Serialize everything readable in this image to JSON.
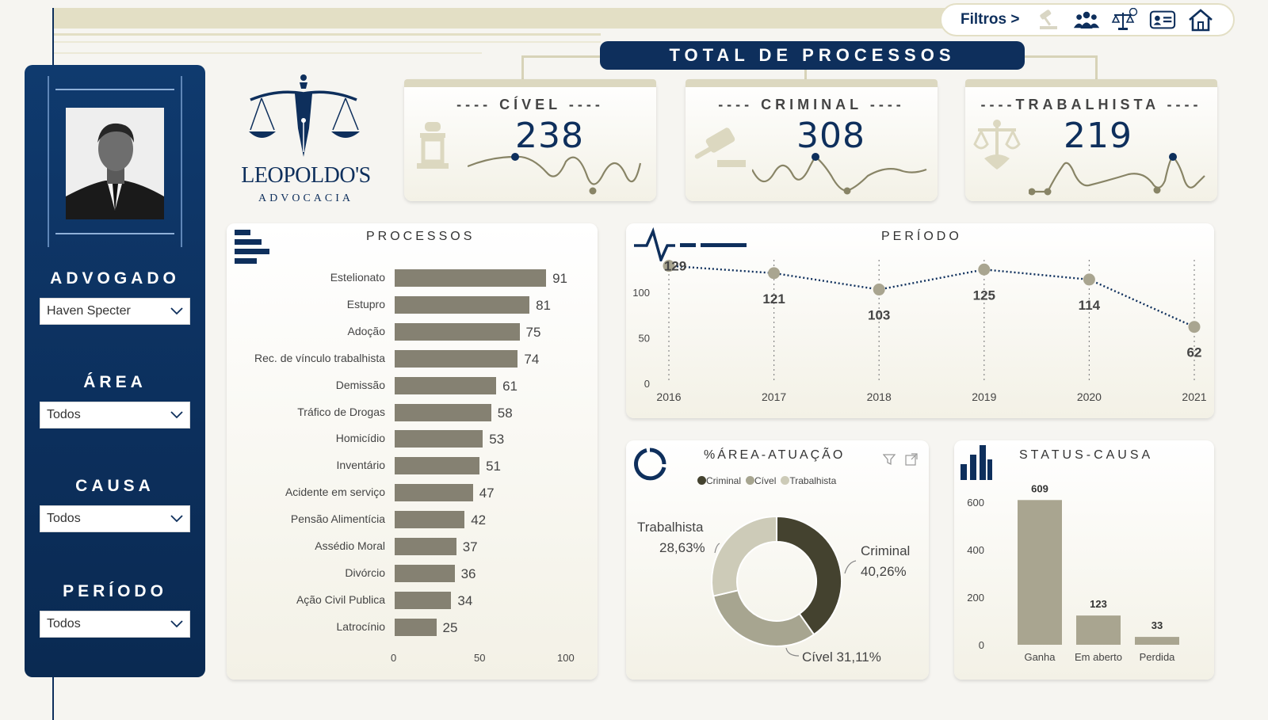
{
  "header": {
    "filters_label": "Filtros >",
    "total_title": "TOTAL DE PROCESSOS",
    "icons": [
      "gavel-icon",
      "people-icon",
      "scales-money-icon",
      "id-card-icon",
      "home-icon"
    ]
  },
  "sidebar": {
    "advogado_label": "ADVOGADO",
    "advogado_value": "Haven Specter",
    "area_label": "ÁREA",
    "area_value": "Todos",
    "causa_label": "CAUSA",
    "causa_value": "Todos",
    "periodo_label": "PERÍODO",
    "periodo_value": "Todos"
  },
  "logo": {
    "name": "LEOPOLDO'S",
    "sub": "ADVOCACIA"
  },
  "kpis": [
    {
      "title": "---- CÍVEL ----",
      "value": "238"
    },
    {
      "title": "---- CRIMINAL ----",
      "value": "308"
    },
    {
      "title": "----TRABALHISTA ----",
      "value": "219"
    }
  ],
  "colors": {
    "navy": "#0e2f5c",
    "bar": "#858172",
    "beige": "#e3dfc5",
    "criminal": "#44422f",
    "civel": "#a7a590",
    "trabalhista": "#cdcbb8"
  },
  "chart_data": [
    {
      "type": "bar",
      "orientation": "horizontal",
      "title": "PROCESSOS",
      "categories": [
        "Estelionato",
        "Estupro",
        "Adoção",
        "Rec. de vínculo trabalhista",
        "Demissão",
        "Tráfico de Drogas",
        "Homicídio",
        "Inventário",
        "Acidente em serviço",
        "Pensão Alimentícia",
        "Assédio Moral",
        "Divórcio",
        "Ação Civil Publica",
        "Latrocínio"
      ],
      "values": [
        91,
        81,
        75,
        74,
        61,
        58,
        53,
        51,
        47,
        42,
        37,
        36,
        34,
        25
      ],
      "xlim": [
        0,
        100
      ],
      "xticks": [
        "0",
        "50",
        "100"
      ]
    },
    {
      "type": "line",
      "title": "PERÍODO",
      "x": [
        "2016",
        "2017",
        "2018",
        "2019",
        "2020",
        "2021"
      ],
      "values": [
        129,
        121,
        103,
        125,
        114,
        62
      ],
      "ylim": [
        0,
        140
      ],
      "yticks": [
        "0",
        "50",
        "100"
      ]
    },
    {
      "type": "pie",
      "title": "%ÁREA-ATUAÇÃO",
      "legend": [
        "Criminal",
        "Cível",
        "Trabalhista"
      ],
      "slices": [
        {
          "name": "Criminal",
          "value": 40.26,
          "label": "Criminal",
          "pct": "40,26%"
        },
        {
          "name": "Cível",
          "value": 31.11,
          "label": "Cível 31,11%"
        },
        {
          "name": "Trabalhista",
          "value": 28.63,
          "label": "Trabalhista",
          "pct": "28,63%"
        }
      ]
    },
    {
      "type": "bar",
      "title": "STATUS-CAUSA",
      "categories": [
        "Ganha",
        "Em aberto",
        "Perdida"
      ],
      "values": [
        609,
        123,
        33
      ],
      "ylim": [
        0,
        700
      ],
      "yticks": [
        "0",
        "200",
        "400",
        "600"
      ]
    }
  ]
}
